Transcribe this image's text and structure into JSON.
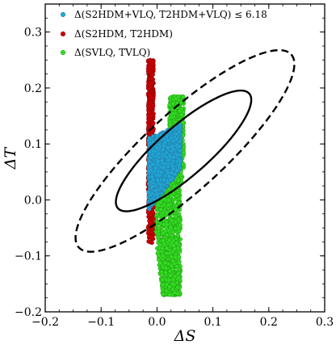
{
  "chart_data": {
    "type": "scatter",
    "xlabel": "ΔS",
    "ylabel": "ΔT",
    "xlim": [
      -0.2,
      0.3
    ],
    "ylim": [
      -0.2,
      0.35
    ],
    "xticks": [
      -0.2,
      -0.1,
      0.0,
      0.1,
      0.2,
      0.3
    ],
    "xtick_labels": [
      "−0.2",
      "−0.1",
      "0.0",
      "0.1",
      "0.2",
      "0.3"
    ],
    "yticks": [
      -0.2,
      -0.1,
      0.0,
      0.1,
      0.2,
      0.3
    ],
    "ytick_labels": [
      "−0.2",
      "−0.1",
      "0.0",
      "0.1",
      "0.2",
      "0.3"
    ],
    "grid": false,
    "legend_position": "top-left",
    "series": [
      {
        "name": "Δ(S2HDM+VLQ, T2HDM+VLQ) ≤ 6.18",
        "color": "#1fa7d6",
        "edgecolor": "#2c6f99",
        "region": {
          "x": [
            -0.015,
            0.042
          ],
          "y_top": [
            0.11,
            0.135
          ],
          "y_bottom": [
            -0.02,
            0.055
          ],
          "center": [
            0.012,
            0.063
          ]
        }
      },
      {
        "name": "Δ(S2HDM, T2HDM)",
        "color": "#cc0000",
        "edgecolor": "#7a0000",
        "region": {
          "x": [
            -0.016,
            -0.006
          ],
          "y": [
            -0.08,
            0.25
          ]
        }
      },
      {
        "name": "Δ(SVLQ, TVLQ)",
        "color": "#33dd22",
        "edgecolor": "#1e8a12",
        "region": {
          "x": [
            -0.012,
            0.048
          ],
          "y": [
            -0.17,
            0.185
          ]
        }
      }
    ],
    "ellipses": [
      {
        "style": "solid",
        "points": [
          [
            -0.07,
            -0.015
          ],
          [
            0.165,
            0.19
          ],
          [
            -0.015,
            0.09
          ],
          [
            0.065,
            0.13
          ]
        ]
      },
      {
        "style": "dashed",
        "points": [
          [
            -0.14,
            -0.085
          ],
          [
            0.24,
            0.26
          ],
          [
            -0.04,
            0.18
          ],
          [
            0.075,
            0.1
          ]
        ]
      }
    ]
  }
}
